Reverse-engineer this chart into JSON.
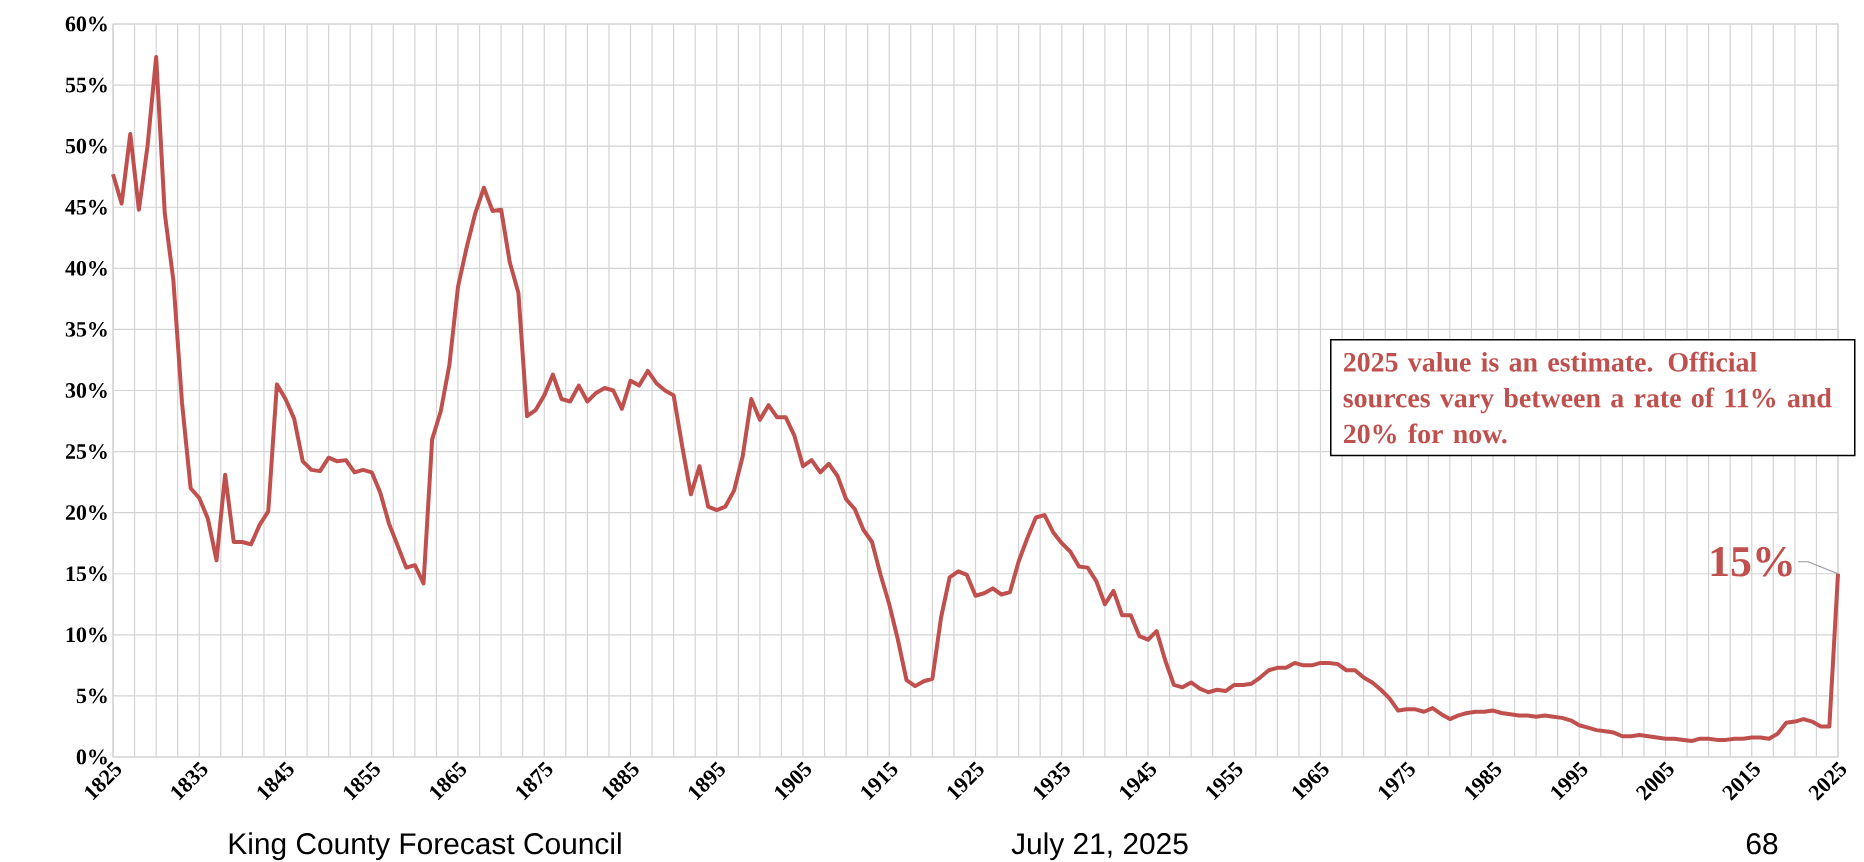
{
  "chart_data": {
    "type": "line",
    "color": "#c0504d",
    "grid": true,
    "x": [
      1825,
      1826,
      1827,
      1828,
      1829,
      1830,
      1831,
      1832,
      1833,
      1834,
      1835,
      1836,
      1837,
      1838,
      1839,
      1840,
      1841,
      1842,
      1843,
      1844,
      1845,
      1846,
      1847,
      1848,
      1849,
      1850,
      1851,
      1852,
      1853,
      1854,
      1855,
      1856,
      1857,
      1858,
      1859,
      1860,
      1861,
      1862,
      1863,
      1864,
      1865,
      1866,
      1867,
      1868,
      1869,
      1870,
      1871,
      1872,
      1873,
      1874,
      1875,
      1876,
      1877,
      1878,
      1879,
      1880,
      1881,
      1882,
      1883,
      1884,
      1885,
      1886,
      1887,
      1888,
      1889,
      1890,
      1891,
      1892,
      1893,
      1894,
      1895,
      1896,
      1897,
      1898,
      1899,
      1900,
      1901,
      1902,
      1903,
      1904,
      1905,
      1906,
      1907,
      1908,
      1909,
      1910,
      1911,
      1912,
      1913,
      1914,
      1915,
      1916,
      1917,
      1918,
      1919,
      1920,
      1921,
      1922,
      1923,
      1924,
      1925,
      1926,
      1927,
      1928,
      1929,
      1930,
      1931,
      1932,
      1933,
      1934,
      1935,
      1936,
      1937,
      1938,
      1939,
      1940,
      1941,
      1942,
      1943,
      1944,
      1945,
      1946,
      1947,
      1948,
      1949,
      1950,
      1951,
      1952,
      1953,
      1954,
      1955,
      1956,
      1957,
      1958,
      1959,
      1960,
      1961,
      1962,
      1963,
      1964,
      1965,
      1966,
      1967,
      1968,
      1969,
      1970,
      1971,
      1972,
      1973,
      1974,
      1975,
      1976,
      1977,
      1978,
      1979,
      1980,
      1981,
      1982,
      1983,
      1984,
      1985,
      1986,
      1987,
      1988,
      1989,
      1990,
      1991,
      1992,
      1993,
      1994,
      1995,
      1996,
      1997,
      1998,
      1999,
      2000,
      2001,
      2002,
      2003,
      2004,
      2005,
      2006,
      2007,
      2008,
      2009,
      2010,
      2011,
      2012,
      2013,
      2014,
      2015,
      2016,
      2017,
      2018,
      2019,
      2020,
      2021,
      2022,
      2023,
      2024,
      2025
    ],
    "values": [
      47.7,
      45.3,
      51,
      44.8,
      50,
      57.3,
      44.5,
      39,
      29,
      22,
      21.2,
      19.5,
      16.1,
      23.1,
      17.6,
      17.6,
      17.4,
      19,
      20.1,
      30.5,
      29.3,
      27.7,
      24.2,
      23.5,
      23.4,
      24.5,
      24.2,
      24.3,
      23.3,
      23.5,
      23.3,
      21.6,
      19.1,
      17.3,
      15.5,
      15.7,
      14.2,
      26,
      28.3,
      32.1,
      38.5,
      41.7,
      44.5,
      46.6,
      44.7,
      44.8,
      40.5,
      38,
      27.9,
      28.4,
      29.6,
      31.3,
      29.3,
      29.1,
      30.4,
      29.1,
      29.8,
      30.2,
      30,
      28.5,
      30.8,
      30.4,
      31.6,
      30.6,
      30,
      29.6,
      25.4,
      21.5,
      23.8,
      20.5,
      20.2,
      20.5,
      21.8,
      24.6,
      29.3,
      27.6,
      28.8,
      27.8,
      27.8,
      26.3,
      23.8,
      24.3,
      23.3,
      24,
      23,
      21.1,
      20.3,
      18.6,
      17.6,
      14.9,
      12.5,
      9.6,
      6.3,
      5.8,
      6.2,
      6.4,
      11.4,
      14.7,
      15.2,
      14.9,
      13.2,
      13.4,
      13.8,
      13.3,
      13.5,
      16,
      17.9,
      19.6,
      19.8,
      18.4,
      17.5,
      16.8,
      15.6,
      15.5,
      14.4,
      12.5,
      13.6,
      11.6,
      11.6,
      9.9,
      9.6,
      10.3,
      7.9,
      5.9,
      5.7,
      6.1,
      5.6,
      5.3,
      5.5,
      5.4,
      5.9,
      5.9,
      6,
      6.5,
      7.1,
      7.3,
      7.3,
      7.7,
      7.5,
      7.5,
      7.7,
      7.7,
      7.6,
      7.1,
      7.1,
      6.5,
      6.1,
      5.5,
      4.8,
      3.8,
      3.9,
      3.9,
      3.7,
      4,
      3.5,
      3.1,
      3.4,
      3.6,
      3.7,
      3.7,
      3.8,
      3.6,
      3.5,
      3.4,
      3.4,
      3.3,
      3.4,
      3.3,
      3.2,
      3,
      2.6,
      2.4,
      2.2,
      2.1,
      2,
      1.7,
      1.7,
      1.8,
      1.7,
      1.6,
      1.5,
      1.5,
      1.4,
      1.3,
      1.5,
      1.5,
      1.4,
      1.4,
      1.5,
      1.5,
      1.6,
      1.6,
      1.5,
      1.9,
      2.8,
      2.9,
      3.1,
      2.9,
      2.5,
      2.5,
      15
    ],
    "xlim": [
      1825,
      2025
    ],
    "xticks": [
      1825,
      1835,
      1845,
      1855,
      1865,
      1875,
      1885,
      1895,
      1905,
      1915,
      1925,
      1935,
      1945,
      1955,
      1965,
      1975,
      1985,
      1995,
      2005,
      2015,
      2025
    ],
    "ylim": [
      0,
      60
    ],
    "yticks": [
      {
        "value": 0,
        "label": "0%"
      },
      {
        "value": 5,
        "label": "5%"
      },
      {
        "value": 10,
        "label": "10%"
      },
      {
        "value": 15,
        "label": "15%"
      },
      {
        "value": 20,
        "label": "20%"
      },
      {
        "value": 25,
        "label": "25%"
      },
      {
        "value": 30,
        "label": "30%"
      },
      {
        "value": 35,
        "label": "35%"
      },
      {
        "value": 40,
        "label": "40%"
      },
      {
        "value": 45,
        "label": "45%"
      },
      {
        "value": 50,
        "label": "50%"
      },
      {
        "value": 55,
        "label": "55%"
      },
      {
        "value": 60,
        "label": "60%"
      }
    ],
    "annotations": [
      {
        "text": "15%",
        "x": 2025,
        "y": 15
      },
      "2025 value is an estimate. Official sources vary between a rate of 11% and 20% for now.",
      "King County Forecast Council",
      "July 21, 2025",
      "68"
    ]
  }
}
